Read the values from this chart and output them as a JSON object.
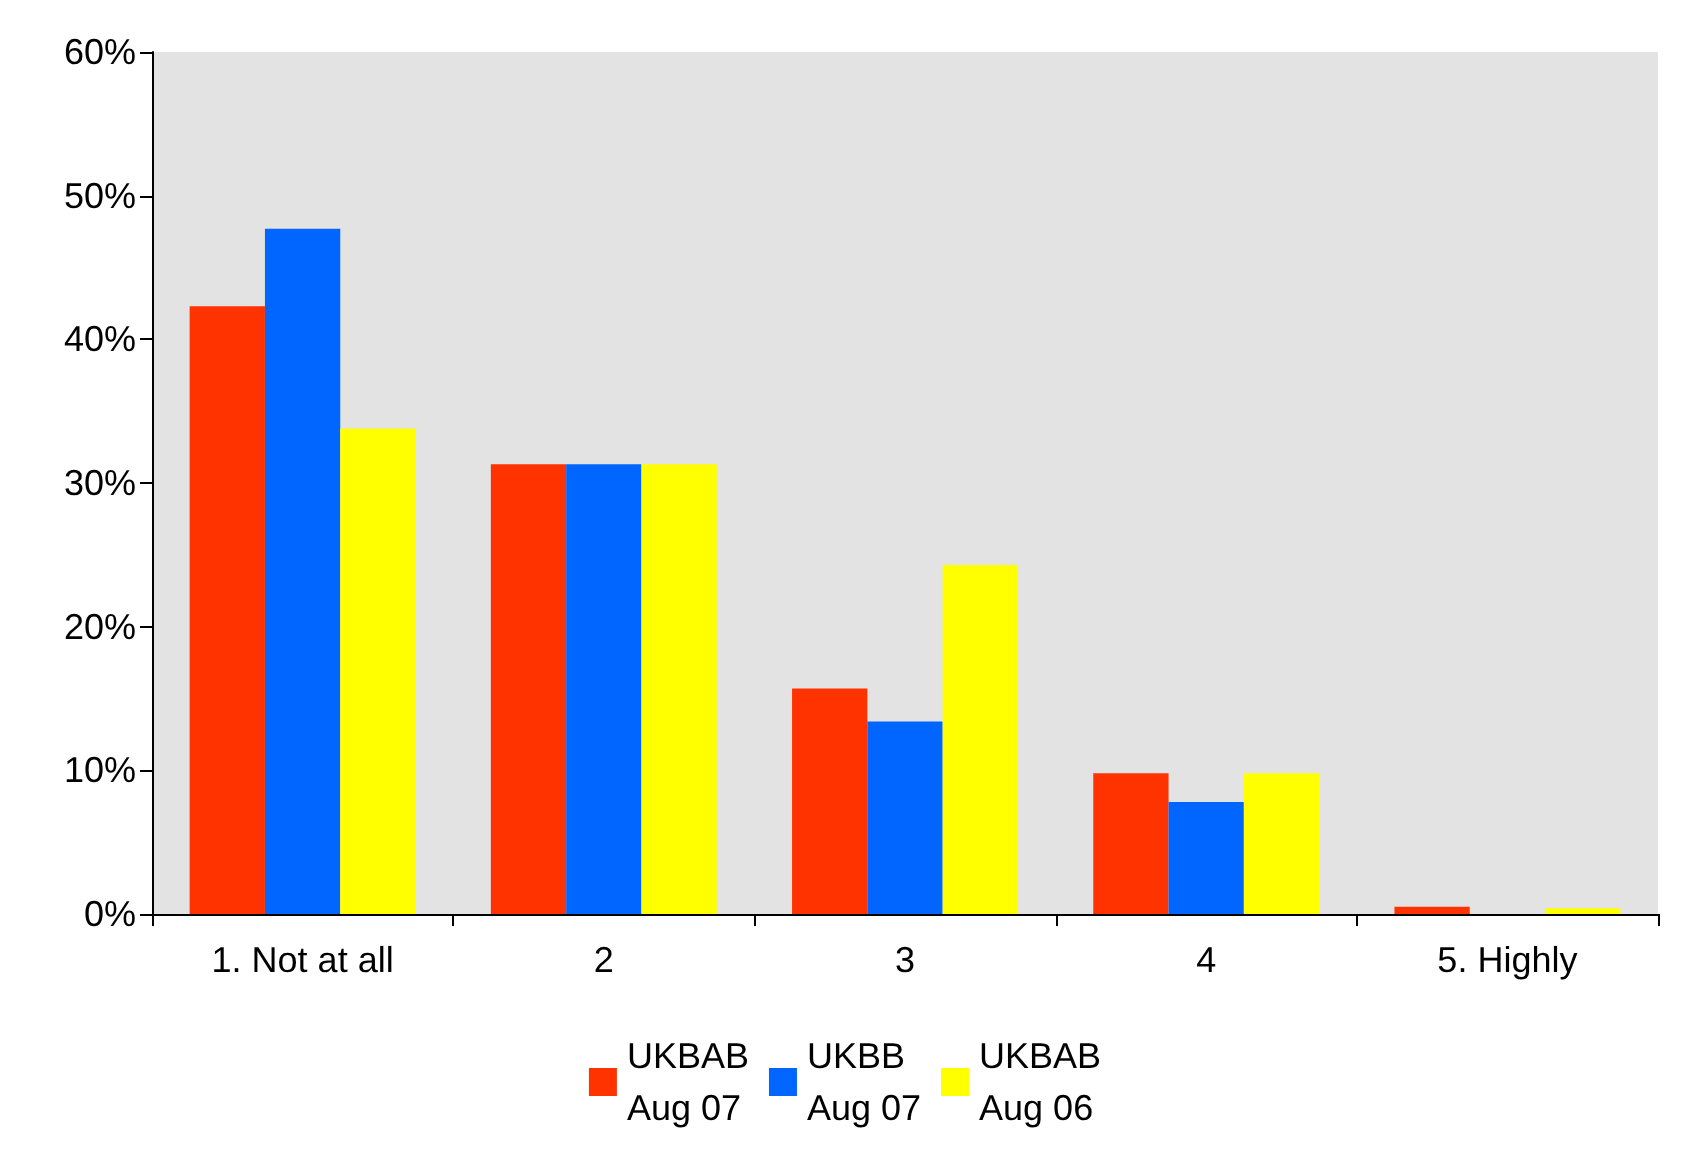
{
  "chart_data": {
    "type": "bar",
    "categories": [
      "1. Not at all",
      "2",
      "3",
      "4",
      "5. Highly"
    ],
    "series": [
      {
        "name": "UKBAB\nAug 07",
        "color": "#ff3300",
        "values": [
          42.3,
          31.3,
          15.7,
          9.8,
          0.5
        ]
      },
      {
        "name": "UKBB\nAug 07",
        "color": "#0066ff",
        "values": [
          47.7,
          31.3,
          13.4,
          7.8,
          0
        ]
      },
      {
        "name": "UKBAB\nAug 06",
        "color": "#ffff00",
        "values": [
          33.8,
          31.3,
          24.3,
          9.8,
          0.4
        ]
      }
    ],
    "ylim": [
      0,
      60
    ],
    "yticks": [
      {
        "value": 0,
        "label": "0%"
      },
      {
        "value": 10,
        "label": "10%"
      },
      {
        "value": 20,
        "label": "20%"
      },
      {
        "value": 30,
        "label": "30%"
      },
      {
        "value": 40,
        "label": "40%"
      },
      {
        "value": 50,
        "label": "50%"
      },
      {
        "value": 60,
        "label": "60%"
      }
    ],
    "grid": false,
    "legend": "bottom"
  }
}
